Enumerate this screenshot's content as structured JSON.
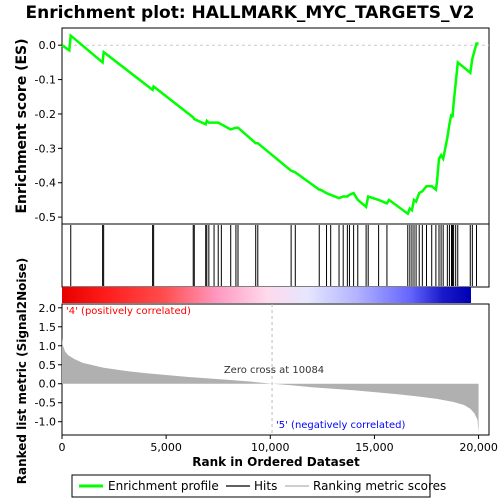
{
  "title": "Enrichment plot: HALLMARK_MYC_TARGETS_V2",
  "colors": {
    "enrichment_line": "#00ff00",
    "hits": "#000000",
    "metric_fill": "#b0b0b0",
    "pos_label": "#ff0000",
    "neg_label": "#0000ff"
  },
  "legend": {
    "enrichment": "Enrichment profile",
    "hits": "Hits",
    "metric": "Ranking metric scores"
  },
  "chart_data": [
    {
      "type": "line",
      "name": "enrichment-profile",
      "ylabel": "Enrichment score (ES)",
      "ylim": [
        -0.52,
        0.05
      ],
      "yticks": [
        0.0,
        -0.1,
        -0.2,
        -0.3,
        -0.4,
        -0.5
      ],
      "ytick_labels": [
        "0.0",
        "-0.1",
        "-0.2",
        "-0.3",
        "-0.4",
        "-0.5"
      ],
      "xlim": [
        0,
        20500
      ],
      "x": [
        0,
        350,
        420,
        1950,
        2000,
        4350,
        4400,
        6300,
        6350,
        6900,
        6950,
        7050,
        7300,
        7500,
        7650,
        8100,
        8350,
        8450,
        9300,
        9400,
        11000,
        11200,
        12350,
        12400,
        12700,
        12900,
        13300,
        13500,
        13700,
        13800,
        14000,
        14200,
        14600,
        14700,
        15200,
        15600,
        15700,
        16600,
        16700,
        16800,
        16900,
        17000,
        17150,
        17300,
        17500,
        17750,
        17950,
        18000,
        18100,
        18200,
        18300,
        18500,
        18600,
        18700,
        18750,
        18800,
        18900,
        19000,
        19600,
        19700,
        19900,
        20000
      ],
      "y": [
        0.0,
        -0.015,
        0.028,
        -0.05,
        -0.02,
        -0.13,
        -0.12,
        -0.21,
        -0.215,
        -0.23,
        -0.22,
        -0.225,
        -0.225,
        -0.225,
        -0.23,
        -0.245,
        -0.24,
        -0.24,
        -0.285,
        -0.285,
        -0.365,
        -0.37,
        -0.42,
        -0.42,
        -0.43,
        -0.435,
        -0.445,
        -0.44,
        -0.44,
        -0.435,
        -0.43,
        -0.45,
        -0.47,
        -0.44,
        -0.45,
        -0.46,
        -0.45,
        -0.49,
        -0.475,
        -0.48,
        -0.45,
        -0.455,
        -0.43,
        -0.425,
        -0.41,
        -0.41,
        -0.42,
        -0.4,
        -0.33,
        -0.32,
        -0.33,
        -0.27,
        -0.23,
        -0.2,
        -0.21,
        -0.17,
        -0.11,
        -0.05,
        -0.08,
        -0.04,
        0.005,
        0.005
      ]
    },
    {
      "type": "scatter",
      "name": "hits",
      "x": [
        420,
        1950,
        2000,
        4350,
        4400,
        6300,
        6350,
        6900,
        6950,
        7050,
        7300,
        7500,
        7650,
        8100,
        8350,
        8450,
        9300,
        9400,
        11000,
        11200,
        12350,
        12700,
        12900,
        13300,
        13500,
        13700,
        13800,
        14000,
        14200,
        14600,
        14700,
        15200,
        15600,
        16600,
        16700,
        16800,
        16900,
        17000,
        17150,
        17300,
        17500,
        17750,
        17950,
        18100,
        18200,
        18300,
        18500,
        18600,
        18700,
        18750,
        18800,
        18900,
        19000,
        19600,
        19700,
        19900
      ]
    },
    {
      "type": "area",
      "name": "ranking-metric",
      "ylabel": "Ranked list metric (Signal2Noise)",
      "xlabel": "Rank in Ordered Dataset",
      "ylim": [
        -1.35,
        2.1
      ],
      "yticks": [
        2.0,
        1.5,
        1.0,
        0.5,
        0.0,
        -0.5,
        -1.0
      ],
      "ytick_labels": [
        "2.0",
        "1.5",
        "1.0",
        "0.5",
        "0.0",
        "-0.5",
        "-1.0"
      ],
      "xlim": [
        0,
        20500
      ],
      "xticks": [
        0,
        5000,
        10000,
        15000,
        20000
      ],
      "xtick_labels": [
        "0",
        "5,000",
        "10,000",
        "15,000",
        "20,000"
      ],
      "x": [
        0,
        50,
        150,
        300,
        600,
        1000,
        2000,
        3000,
        4000,
        5000,
        6000,
        7000,
        8000,
        9000,
        10084,
        11000,
        12000,
        13000,
        14000,
        15000,
        16000,
        17000,
        18000,
        18800,
        19300,
        19600,
        19800,
        19950,
        20000
      ],
      "y": [
        1.2,
        1.0,
        0.85,
        0.75,
        0.65,
        0.55,
        0.42,
        0.34,
        0.28,
        0.23,
        0.18,
        0.14,
        0.1,
        0.06,
        0.0,
        -0.04,
        -0.09,
        -0.13,
        -0.17,
        -0.22,
        -0.27,
        -0.33,
        -0.4,
        -0.48,
        -0.56,
        -0.66,
        -0.78,
        -0.95,
        -1.3
      ]
    }
  ],
  "annotations": {
    "pos_label": "'4' (positively correlated)",
    "neg_label": "'5' (negatively correlated)",
    "zero_cross": "Zero cross at 10084",
    "zero_cross_rank": 10084
  }
}
